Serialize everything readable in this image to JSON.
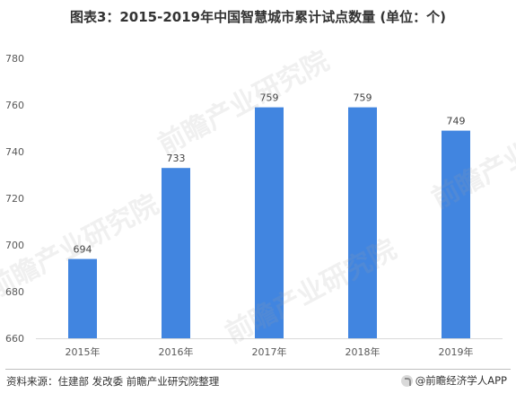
{
  "title": "图表3：2015-2019年中国智慧城市累计试点数量 (单位：个)",
  "source": "资料来源：住建部 发改委 前瞻产业研究院整理",
  "brand": "@前瞻经济学人APP",
  "watermark": "前瞻产业研究院",
  "colors": {
    "bar": "#4185e0",
    "grid": "#d9d9d9",
    "text": "#595959"
  },
  "chart_data": {
    "type": "bar",
    "title": "图表3：2015-2019年中国智慧城市累计试点数量 (单位：个)",
    "categories": [
      "2015年",
      "2016年",
      "2017年",
      "2018年",
      "2019年"
    ],
    "values": [
      694,
      733,
      759,
      759,
      749
    ],
    "data_labels": [
      "694",
      "733",
      "759",
      "759",
      "749"
    ],
    "yticks": [
      "660",
      "680",
      "700",
      "720",
      "740",
      "760",
      "780"
    ],
    "ylim": [
      660,
      780
    ],
    "grid": false,
    "legend": "none"
  }
}
